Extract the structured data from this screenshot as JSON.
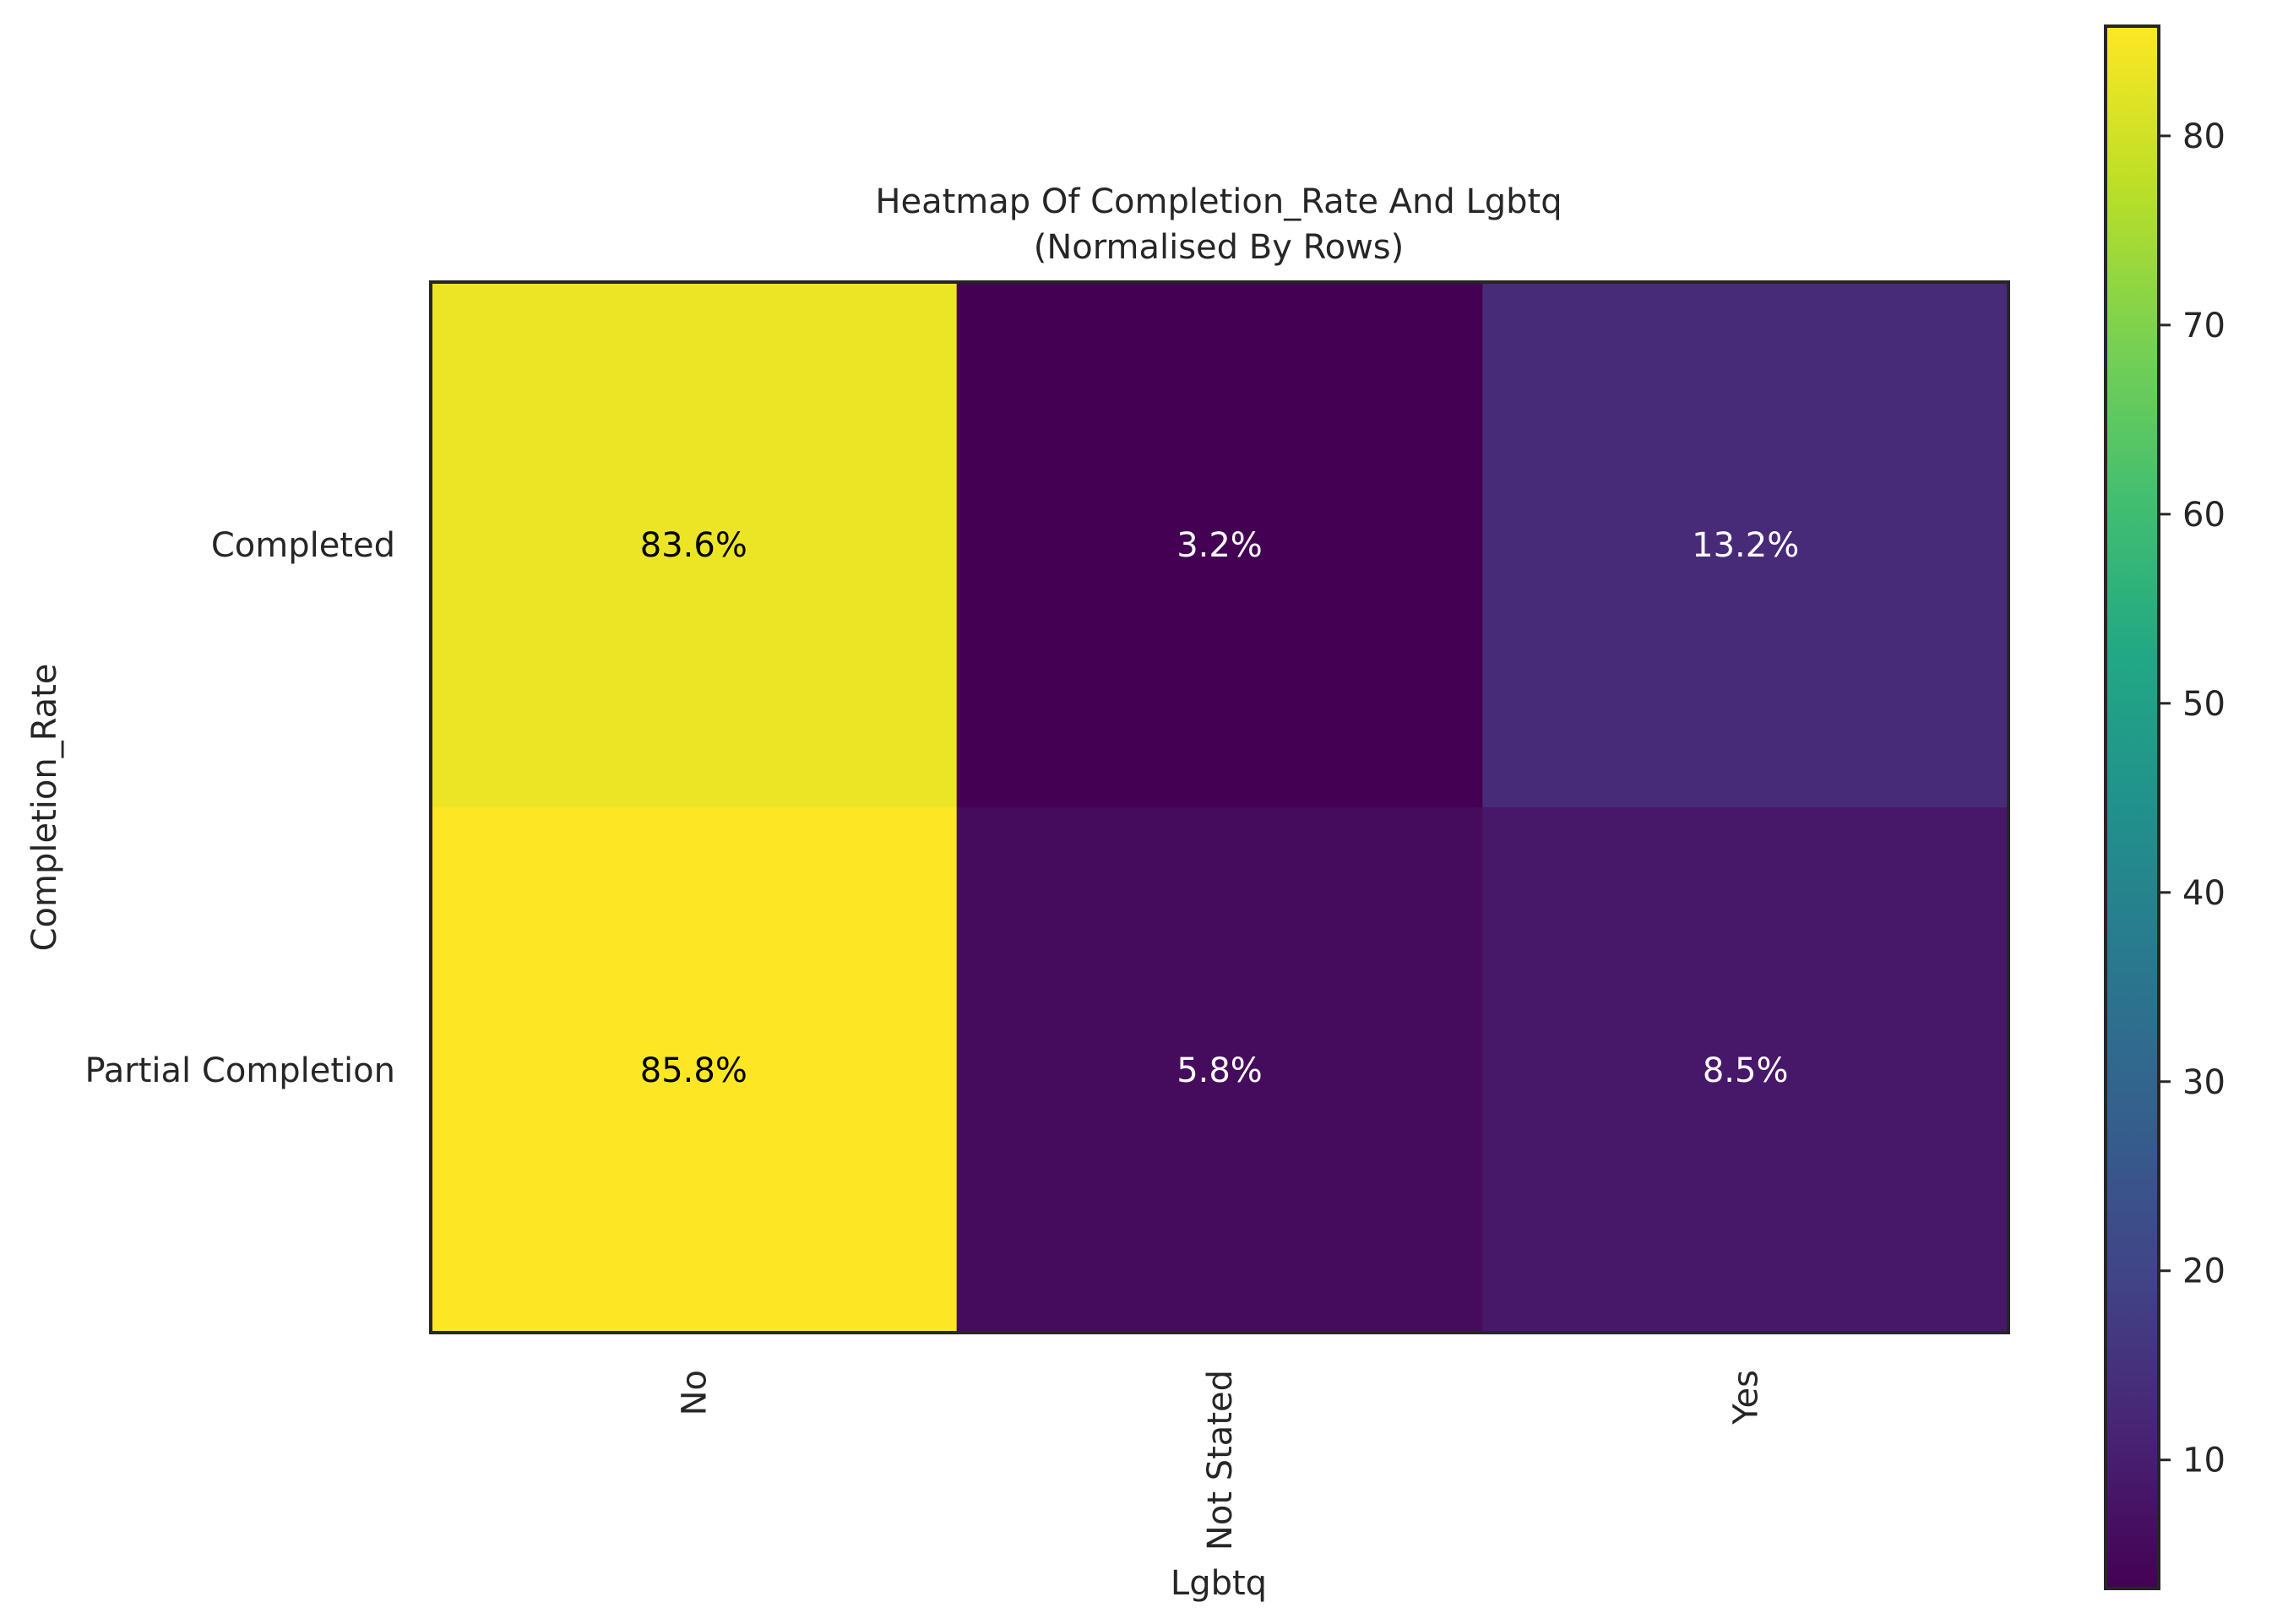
{
  "chart_data": {
    "type": "heatmap",
    "title": "Heatmap Of Completion_Rate And Lgbtq",
    "subtitle": "(Normalised By Rows)",
    "xlabel": "Lgbtq",
    "ylabel": "Completion_Rate",
    "x_categories": [
      "No",
      "Not Stated",
      "Yes"
    ],
    "y_categories": [
      "Completed",
      "Partial Completion"
    ],
    "values": [
      [
        83.6,
        3.2,
        13.2
      ],
      [
        85.8,
        5.8,
        8.5
      ]
    ],
    "cell_labels": [
      [
        "83.6%",
        "3.2%",
        "13.2%"
      ],
      [
        "85.8%",
        "5.8%",
        "8.5%"
      ]
    ],
    "colormap": "viridis",
    "colorbar": {
      "range": [
        3.2,
        85.8
      ],
      "ticks": [
        10,
        20,
        30,
        40,
        50,
        60,
        70,
        80
      ],
      "tick_labels": [
        "10",
        "20",
        "30",
        "40",
        "50",
        "60",
        "70",
        "80"
      ]
    },
    "grid": false,
    "legend": "colorbar-right"
  }
}
